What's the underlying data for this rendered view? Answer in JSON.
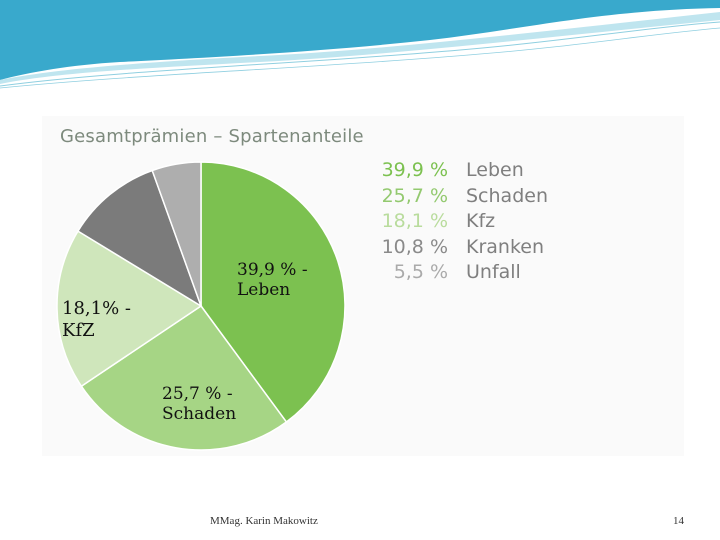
{
  "slide": {
    "author": "MMag. Karin Makowitz",
    "page_number": "14"
  },
  "colors": {
    "header_teal": "#39a9cc",
    "header_light": "#bfe5ef"
  },
  "chart_data": {
    "type": "pie",
    "title": "Gesamtprämien – Spartenanteile",
    "slices": [
      {
        "name": "Leben",
        "value": 39.9,
        "value_label": "39,9 %",
        "color": "#7cc150",
        "legend_value_color": "#7cc150"
      },
      {
        "name": "Schaden",
        "value": 25.7,
        "value_label": "25,7 %",
        "color": "#a6d585",
        "legend_value_color": "#93c96f"
      },
      {
        "name": "Kfz",
        "value": 18.1,
        "value_label": "18,1 %",
        "color": "#cfe6bb",
        "legend_value_color": "#b9dc9d"
      },
      {
        "name": "Kranken",
        "value": 10.8,
        "value_label": "10,8 %",
        "color": "#7b7b7b",
        "legend_value_color": "#8a8a8a"
      },
      {
        "name": "Unfall",
        "value": 5.5,
        "value_label": "5,5 %",
        "color": "#aeaeae",
        "legend_value_color": "#aaaaaa"
      }
    ],
    "data_labels": [
      {
        "slice": "Leben",
        "line1": "39,9 % -",
        "line2": "Leben"
      },
      {
        "slice": "Schaden",
        "line1": "25,7 % -",
        "line2": "Schaden"
      },
      {
        "slice": "Kfz",
        "line1": "18,1% -",
        "line2": "KfZ"
      }
    ]
  }
}
